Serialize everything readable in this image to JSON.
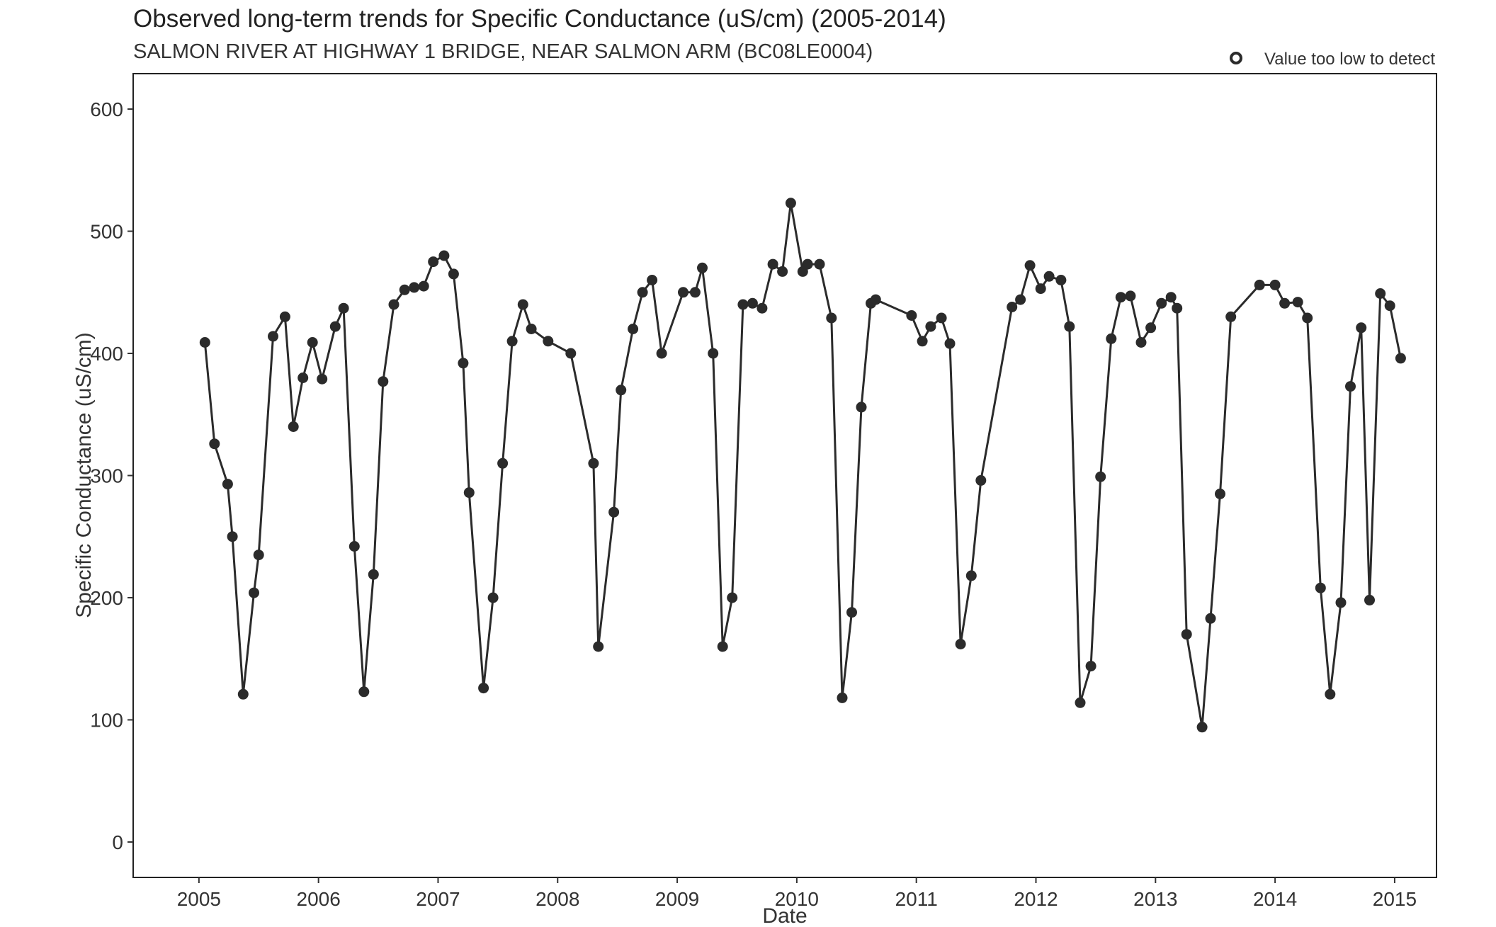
{
  "chart_data": {
    "type": "line",
    "title": "Observed long-term trends for Specific Conductance (uS/cm) (2005-2014)",
    "subtitle": "SALMON RIVER AT HIGHWAY 1 BRIDGE, NEAR SALMON ARM (BC08LE0004)",
    "xlabel": "Date",
    "ylabel": "Specific Conductance (uS/cm)",
    "x_ticks": [
      "2005",
      "2006",
      "2007",
      "2008",
      "2009",
      "2010",
      "2011",
      "2012",
      "2013",
      "2014",
      "2015"
    ],
    "y_ticks": [
      "0",
      "100",
      "200",
      "300",
      "400",
      "500",
      "600"
    ],
    "xlim": [
      2004.45,
      2015.35
    ],
    "ylim": [
      -29,
      629
    ],
    "grid": false,
    "legend": {
      "position": "top-right",
      "entries": [
        {
          "label": "Value too low to detect",
          "marker": "open-circle"
        }
      ]
    },
    "colors": {
      "line": "#2b2b2b",
      "point": "#2b2b2b"
    },
    "series": [
      {
        "x": [
          2005.05,
          2005.13,
          2005.24,
          2005.28,
          2005.37,
          2005.46,
          2005.5,
          2005.62,
          2005.72,
          2005.79,
          2005.87,
          2005.95,
          2006.03,
          2006.14,
          2006.21,
          2006.3,
          2006.38,
          2006.46,
          2006.54,
          2006.63,
          2006.72,
          2006.8,
          2006.88,
          2006.96,
          2007.05,
          2007.13,
          2007.21,
          2007.26,
          2007.38,
          2007.46,
          2007.54,
          2007.62,
          2007.71,
          2007.78,
          2007.92,
          2008.11,
          2008.3,
          2008.34,
          2008.47,
          2008.53,
          2008.63,
          2008.71,
          2008.79,
          2008.87,
          2009.05,
          2009.15,
          2009.21,
          2009.3,
          2009.38,
          2009.46,
          2009.55,
          2009.63,
          2009.71,
          2009.8,
          2009.88,
          2009.95,
          2010.05,
          2010.09,
          2010.19,
          2010.29,
          2010.38,
          2010.46,
          2010.54,
          2010.62,
          2010.66,
          2010.96,
          2011.05,
          2011.12,
          2011.21,
          2011.28,
          2011.37,
          2011.46,
          2011.54,
          2011.8,
          2011.87,
          2011.95,
          2012.04,
          2012.11,
          2012.21,
          2012.28,
          2012.37,
          2012.46,
          2012.54,
          2012.63,
          2012.71,
          2012.79,
          2012.88,
          2012.96,
          2013.05,
          2013.13,
          2013.18,
          2013.26,
          2013.39,
          2013.46,
          2013.54,
          2013.63,
          2013.87,
          2014.0,
          2014.08,
          2014.19,
          2014.27,
          2014.38,
          2014.46,
          2014.55,
          2014.63,
          2014.72,
          2014.79,
          2014.88,
          2014.96,
          2015.05
        ],
        "y": [
          409,
          326,
          293,
          250,
          121,
          204,
          235,
          414,
          430,
          340,
          380,
          409,
          379,
          422,
          437,
          242,
          123,
          219,
          377,
          440,
          452,
          454,
          455,
          475,
          480,
          465,
          392,
          286,
          126,
          200,
          310,
          410,
          440,
          420,
          410,
          400,
          310,
          160,
          270,
          370,
          420,
          450,
          460,
          400,
          450,
          450,
          470,
          400,
          160,
          200,
          440,
          441,
          437,
          473,
          467,
          523,
          467,
          473,
          473,
          429,
          118,
          188,
          356,
          441,
          444,
          431,
          410,
          422,
          429,
          408,
          162,
          218,
          296,
          438,
          444,
          472,
          453,
          463,
          460,
          422,
          114,
          144,
          299,
          412,
          446,
          447,
          409,
          421,
          441,
          446,
          437,
          170,
          94,
          183,
          285,
          430,
          456,
          456,
          441,
          442,
          429,
          208,
          121,
          196,
          373,
          421,
          198,
          449,
          439,
          396
        ]
      }
    ]
  }
}
